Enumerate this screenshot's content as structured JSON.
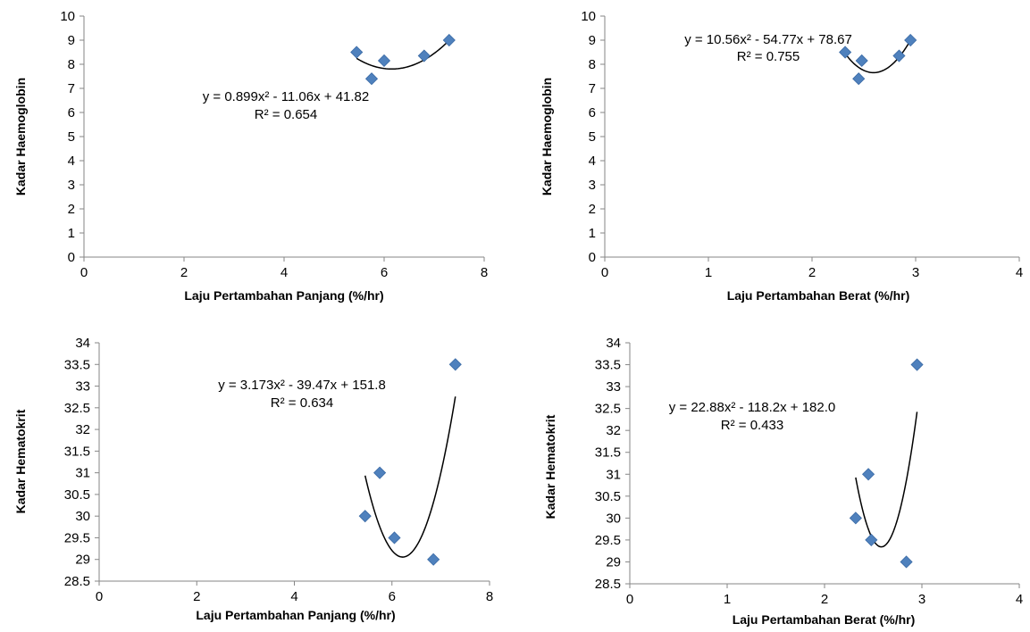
{
  "chart_data": [
    {
      "type": "scatter",
      "xlabel": "Laju Pertambahan Panjang (%/hr)",
      "ylabel": "Kadar Haemoglobin",
      "xlim": [
        0,
        8
      ],
      "ylim": [
        0,
        10
      ],
      "xticks": [
        0,
        2,
        4,
        6,
        8
      ],
      "yticks": [
        0,
        1,
        2,
        3,
        4,
        5,
        6,
        7,
        8,
        9,
        10
      ],
      "grid": false,
      "marker_color": "#4F81BD",
      "points": [
        {
          "x": 5.45,
          "y": 8.5
        },
        {
          "x": 5.75,
          "y": 7.4
        },
        {
          "x": 6.0,
          "y": 8.15
        },
        {
          "x": 6.8,
          "y": 8.35
        },
        {
          "x": 7.3,
          "y": 9.0
        }
      ],
      "trendline": {
        "type": "poly2",
        "coef": [
          0.899,
          -11.06,
          41.82
        ],
        "x_range": [
          5.45,
          7.3
        ],
        "equation": "y = 0.899x² - 11.06x + 41.82",
        "r2_label": "R² = 0.654"
      }
    },
    {
      "type": "scatter",
      "xlabel": "Laju Pertambahan Berat (%/hr)",
      "ylabel": "Kadar Haemoglobin",
      "xlim": [
        0,
        4
      ],
      "ylim": [
        0,
        10
      ],
      "xticks": [
        0,
        1,
        2,
        3,
        4
      ],
      "yticks": [
        0,
        1,
        2,
        3,
        4,
        5,
        6,
        7,
        8,
        9,
        10
      ],
      "grid": false,
      "marker_color": "#4F81BD",
      "points": [
        {
          "x": 2.32,
          "y": 8.5
        },
        {
          "x": 2.45,
          "y": 7.4
        },
        {
          "x": 2.48,
          "y": 8.15
        },
        {
          "x": 2.84,
          "y": 8.35
        },
        {
          "x": 2.95,
          "y": 9.0
        }
      ],
      "trendline": {
        "type": "poly2",
        "coef": [
          10.56,
          -54.77,
          78.67
        ],
        "x_range": [
          2.32,
          2.95
        ],
        "equation": "y = 10.56x² - 54.77x + 78.67",
        "r2_label": "R² = 0.755"
      }
    },
    {
      "type": "scatter",
      "xlabel": "Laju Pertambahan Panjang (%/hr)",
      "ylabel": "Kadar Hematokrit",
      "xlim": [
        0,
        8
      ],
      "ylim": [
        28.5,
        34
      ],
      "xticks": [
        0,
        2,
        4,
        6,
        8
      ],
      "yticks": [
        28.5,
        29,
        29.5,
        30,
        30.5,
        31,
        31.5,
        32,
        32.5,
        33,
        33.5,
        34
      ],
      "grid": false,
      "marker_color": "#4F81BD",
      "points": [
        {
          "x": 5.45,
          "y": 30.0
        },
        {
          "x": 5.75,
          "y": 31.0
        },
        {
          "x": 6.05,
          "y": 29.5
        },
        {
          "x": 6.85,
          "y": 29.0
        },
        {
          "x": 7.3,
          "y": 33.5
        }
      ],
      "trendline": {
        "type": "poly2",
        "coef": [
          3.173,
          -39.47,
          151.8
        ],
        "x_range": [
          5.45,
          7.3
        ],
        "equation": "y = 3.173x² - 39.47x + 151.8",
        "r2_label": "R² = 0.634"
      }
    },
    {
      "type": "scatter",
      "xlabel": "Laju Pertambahan Berat (%/hr)",
      "ylabel": "Kadar Hematokrit",
      "xlim": [
        0,
        4
      ],
      "ylim": [
        28.5,
        34
      ],
      "xticks": [
        0,
        1,
        2,
        3,
        4
      ],
      "yticks": [
        28.5,
        29,
        29.5,
        30,
        30.5,
        31,
        31.5,
        32,
        32.5,
        33,
        33.5,
        34
      ],
      "grid": false,
      "marker_color": "#4F81BD",
      "points": [
        {
          "x": 2.32,
          "y": 30.0
        },
        {
          "x": 2.45,
          "y": 31.0
        },
        {
          "x": 2.48,
          "y": 29.5
        },
        {
          "x": 2.84,
          "y": 29.0
        },
        {
          "x": 2.95,
          "y": 33.5
        }
      ],
      "trendline": {
        "type": "poly2",
        "coef": [
          22.88,
          -118.2,
          182.0
        ],
        "x_range": [
          2.32,
          2.95
        ],
        "equation": "y = 22.88x² - 118.2x + 182.0",
        "r2_label": "R² = 0.433"
      }
    }
  ]
}
